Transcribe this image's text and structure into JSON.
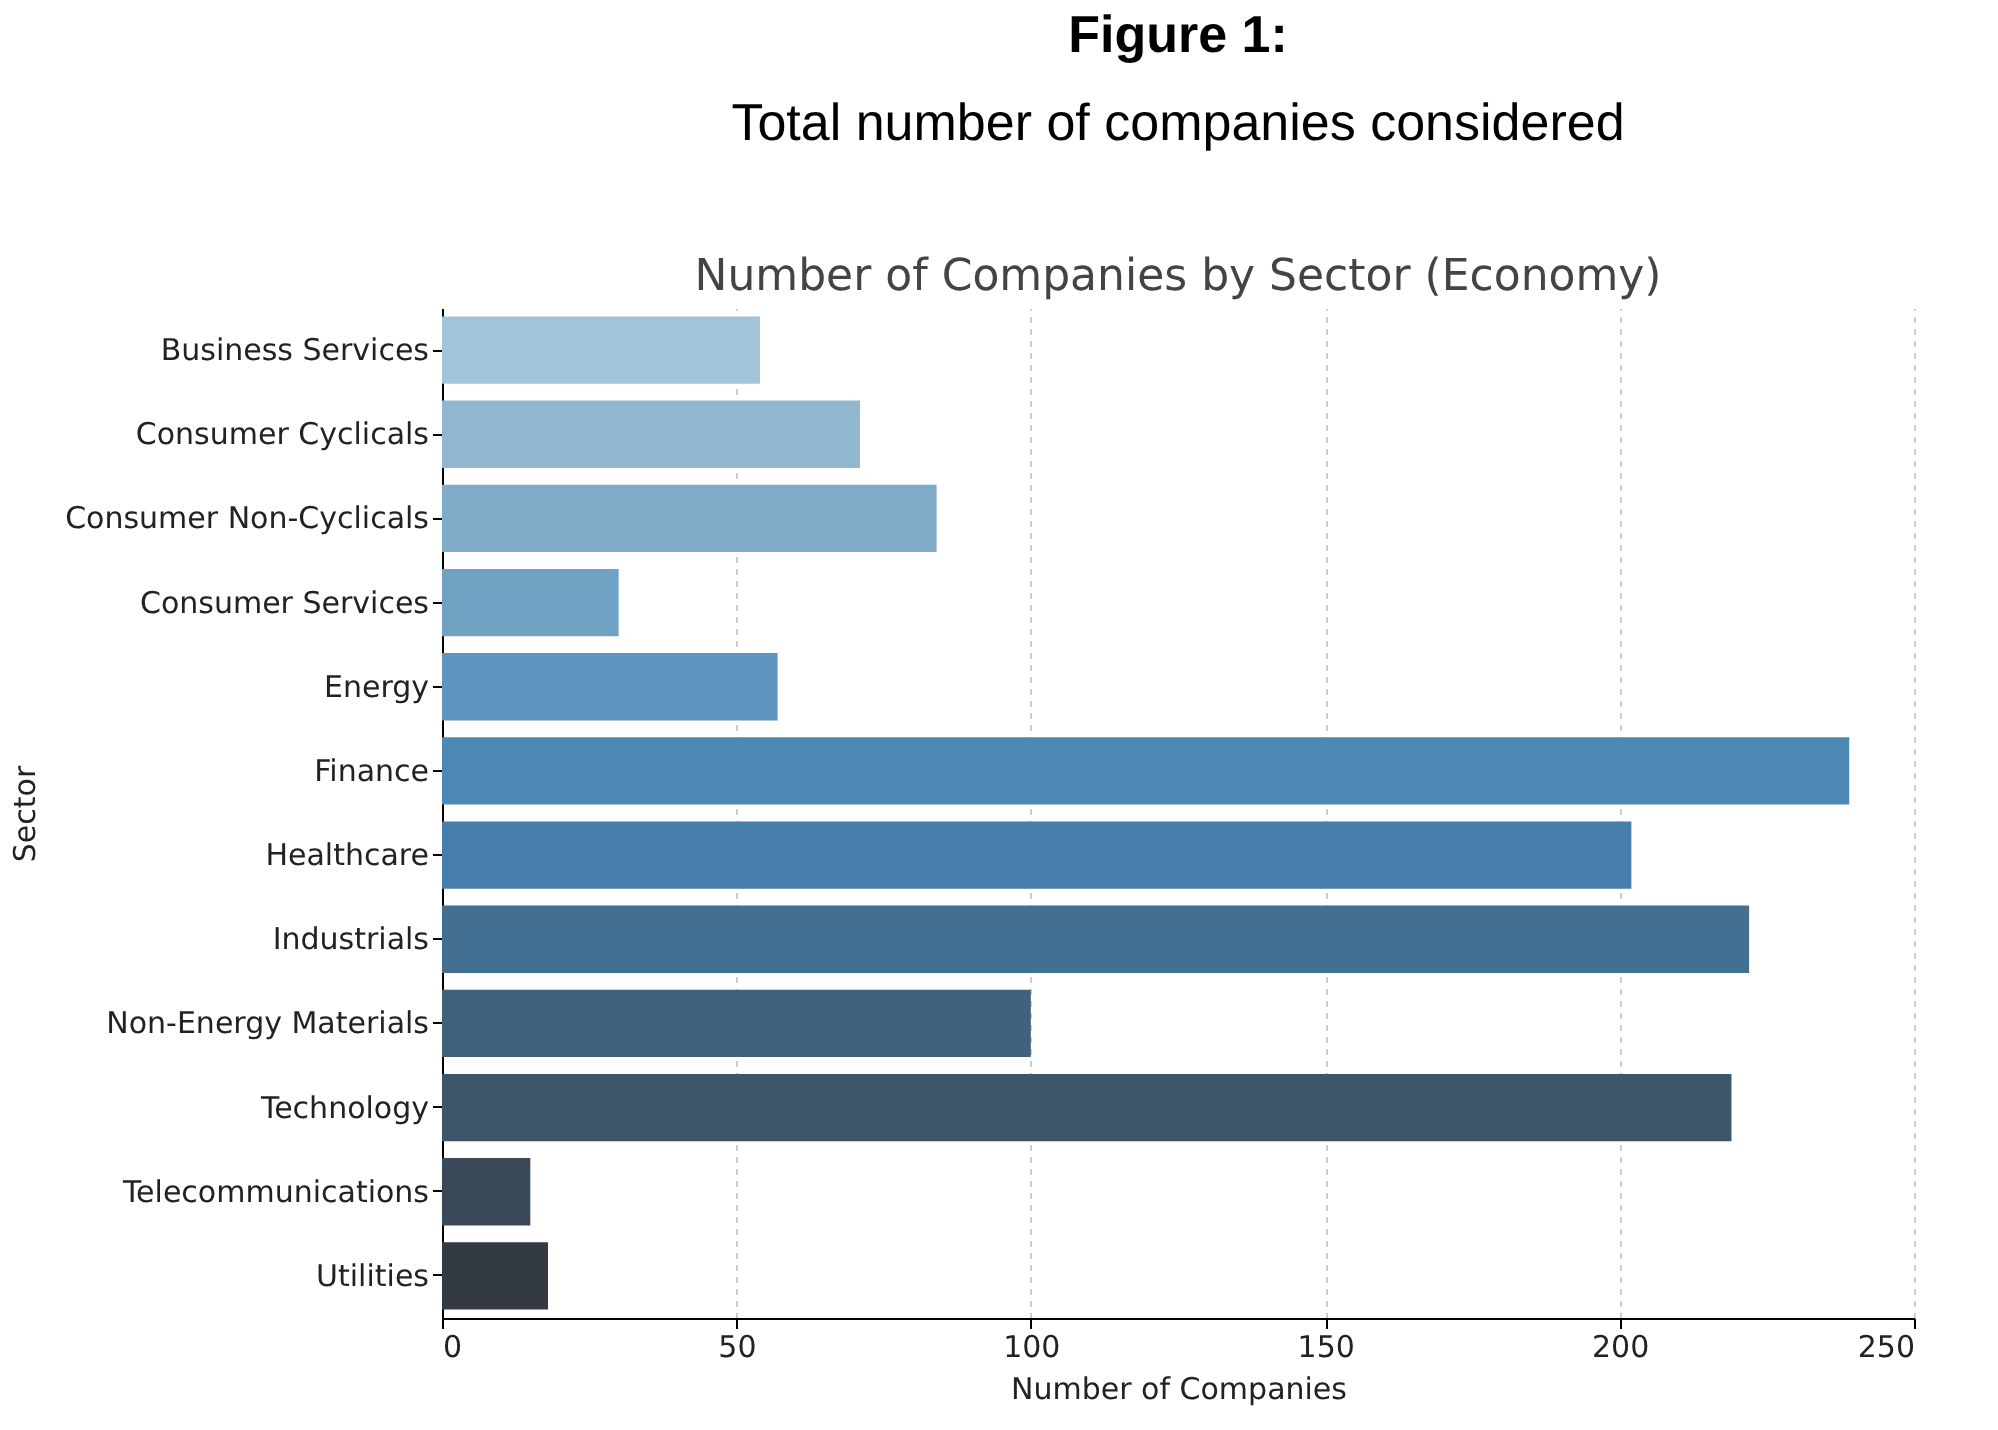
{
  "chart_data": {
    "type": "bar",
    "orientation": "horizontal",
    "title": "Figure 1:",
    "subtitle": "Total number of companies considered",
    "annotations": [
      "Number of Companies by Sector (Economy)"
    ],
    "xlabel": "Number of Companies",
    "ylabel": "Sector",
    "categories": [
      "Business Services",
      "Consumer Cyclicals",
      "Consumer Non-Cyclicals",
      "Consumer Services",
      "Energy",
      "Finance",
      "Healthcare",
      "Industrials",
      "Non-Energy Materials",
      "Technology",
      "Telecommunications",
      "Utilities"
    ],
    "values": [
      54,
      71,
      84,
      30,
      57,
      239,
      202,
      222,
      100,
      219,
      15,
      18
    ],
    "colors": [
      "#a1c4d8",
      "#92b8d1",
      "#80abc9",
      "#70a2c4",
      "#5f96bf",
      "#4e89b6",
      "#477dab",
      "#426f92",
      "#3f617c",
      "#3d5669",
      "#3a4957",
      "#343a42"
    ],
    "xlim": [
      0,
      250
    ],
    "xticks": [
      0,
      50,
      100,
      150,
      200,
      250
    ],
    "grid": "x"
  }
}
